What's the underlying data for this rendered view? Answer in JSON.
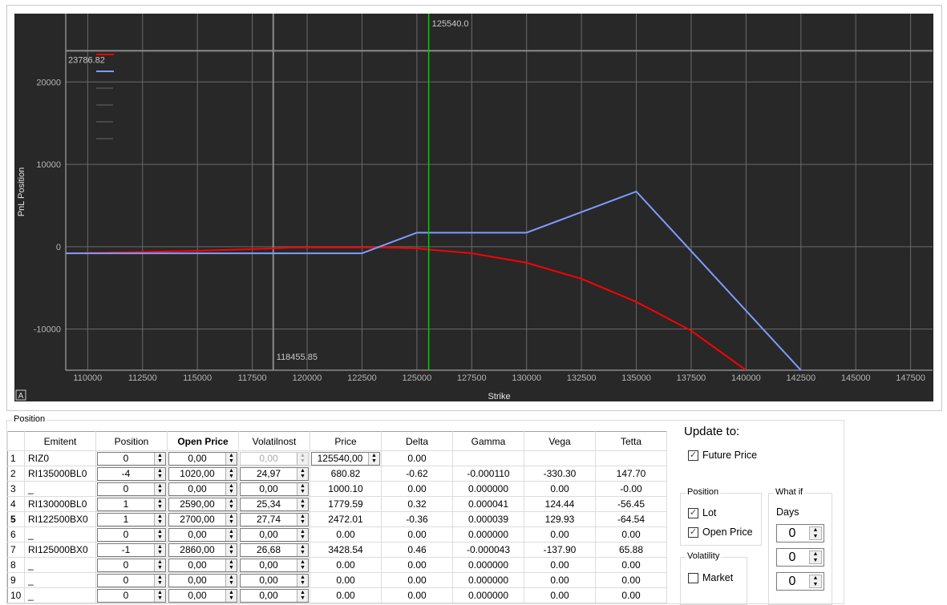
{
  "chart_data": {
    "type": "line",
    "xlabel": "Strike",
    "ylabel": "PnL Position",
    "xlim": [
      109000,
      148500
    ],
    "ylim": [
      -15000,
      28300
    ],
    "x_ticks": [
      110000,
      112500,
      115000,
      117500,
      120000,
      122500,
      125000,
      127500,
      130000,
      132500,
      135000,
      137500,
      140000,
      142500,
      145000,
      147500
    ],
    "x_tick_labels": [
      "110000",
      "112500",
      "115000",
      "117500",
      "120000",
      "122500",
      "125000",
      "127500",
      "130000",
      "132500",
      "135000",
      "137500",
      "140000",
      "142500",
      "145000",
      "147500"
    ],
    "y_ticks": [
      -10000,
      0,
      10000,
      20000
    ],
    "y_tick_labels": [
      "-10000",
      "0",
      "10000",
      "20000"
    ],
    "grid": true,
    "series": [
      {
        "name": "PnL current",
        "color": "#ff0000",
        "points": [
          [
            109000,
            -800
          ],
          [
            112500,
            -650
          ],
          [
            115000,
            -500
          ],
          [
            117500,
            -300
          ],
          [
            118500,
            -200
          ],
          [
            119300,
            -100
          ],
          [
            123400,
            -100
          ],
          [
            125000,
            -200
          ],
          [
            125540,
            -350
          ],
          [
            127500,
            -800
          ],
          [
            130000,
            -1950
          ],
          [
            132500,
            -3900
          ],
          [
            135000,
            -6700
          ],
          [
            137500,
            -10200
          ],
          [
            140000,
            -15000
          ]
        ]
      },
      {
        "name": "PnL expiration",
        "color": "#7f9cff",
        "points": [
          [
            109000,
            -800
          ],
          [
            122500,
            -800
          ],
          [
            125000,
            1700
          ],
          [
            130000,
            1700
          ],
          [
            135000,
            6700
          ],
          [
            142500,
            -15000
          ],
          [
            145000,
            -22000
          ]
        ]
      }
    ],
    "cursor_x": {
      "value": 125540,
      "label": "125540.0",
      "color": "#00cc00"
    },
    "marker_x": {
      "value": 118455.85,
      "label": "118455.85"
    },
    "marker_y": {
      "value": 23786.82,
      "label": "23786.82"
    },
    "corner_label": "A"
  },
  "position": {
    "title": "Position",
    "columns": [
      "Emitent",
      "Position",
      "Open Price",
      "Volatilnost",
      "Price",
      "Delta",
      "Gamma",
      "Vega",
      "Tetta"
    ],
    "rows": [
      {
        "n": "1",
        "emitent": "RIZ0",
        "position": "0",
        "open_price": "0,00",
        "vol": "0,00",
        "price": "125540,00",
        "delta": "0.00",
        "gamma": "",
        "vega": "",
        "tetta": ""
      },
      {
        "n": "2",
        "emitent": "RI135000BL0",
        "position": "-4",
        "open_price": "1020,00",
        "vol": "24,97",
        "price": "680.82",
        "delta": "-0.62",
        "gamma": "-0.000110",
        "vega": "-330.30",
        "tetta": "147.70"
      },
      {
        "n": "3",
        "emitent": "_",
        "position": "0",
        "open_price": "0,00",
        "vol": "0,00",
        "price": "1000.10",
        "delta": "0.00",
        "gamma": "0.000000",
        "vega": "0.00",
        "tetta": "-0.00"
      },
      {
        "n": "4",
        "emitent": "RI130000BL0",
        "position": "1",
        "open_price": "2590,00",
        "vol": "25,34",
        "price": "1779.59",
        "delta": "0.32",
        "gamma": "0.000041",
        "vega": "124.44",
        "tetta": "-56.45"
      },
      {
        "n": "5",
        "emitent": "RI122500BX0",
        "position": "1",
        "open_price": "2700,00",
        "vol": "27,74",
        "price": "2472.01",
        "delta": "-0.36",
        "gamma": "0.000039",
        "vega": "129.93",
        "tetta": "-64.54"
      },
      {
        "n": "6",
        "emitent": "_",
        "position": "0",
        "open_price": "0,00",
        "vol": "0,00",
        "price": "0.00",
        "delta": "0.00",
        "gamma": "0.000000",
        "vega": "0.00",
        "tetta": "0.00"
      },
      {
        "n": "7",
        "emitent": "RI125000BX0",
        "position": "-1",
        "open_price": "2860,00",
        "vol": "26,68",
        "price": "3428.54",
        "delta": "0.46",
        "gamma": "-0.000043",
        "vega": "-137.90",
        "tetta": "65.88"
      },
      {
        "n": "8",
        "emitent": "_",
        "position": "0",
        "open_price": "0,00",
        "vol": "0,00",
        "price": "0.00",
        "delta": "0.00",
        "gamma": "0.000000",
        "vega": "0.00",
        "tetta": "0.00"
      },
      {
        "n": "9",
        "emitent": "_",
        "position": "0",
        "open_price": "0,00",
        "vol": "0,00",
        "price": "0.00",
        "delta": "0.00",
        "gamma": "0.000000",
        "vega": "0.00",
        "tetta": "0.00"
      },
      {
        "n": "10",
        "emitent": "_",
        "position": "0",
        "open_price": "0,00",
        "vol": "0,00",
        "price": "0.00",
        "delta": "0.00",
        "gamma": "0.000000",
        "vega": "0.00",
        "tetta": "0.00"
      }
    ]
  },
  "update": {
    "title": "Update to:",
    "future_price": {
      "label": "Future Price",
      "checked": true
    },
    "position_group": "Position",
    "lot": {
      "label": "Lot",
      "checked": true
    },
    "open_price": {
      "label": "Open Price",
      "checked": true
    },
    "volatility_group": "Volatility",
    "market": {
      "label": "Market",
      "checked": false
    },
    "whatif_group": "What if",
    "days_label": "Days",
    "whatif_values": [
      "0",
      "0",
      "0"
    ]
  }
}
